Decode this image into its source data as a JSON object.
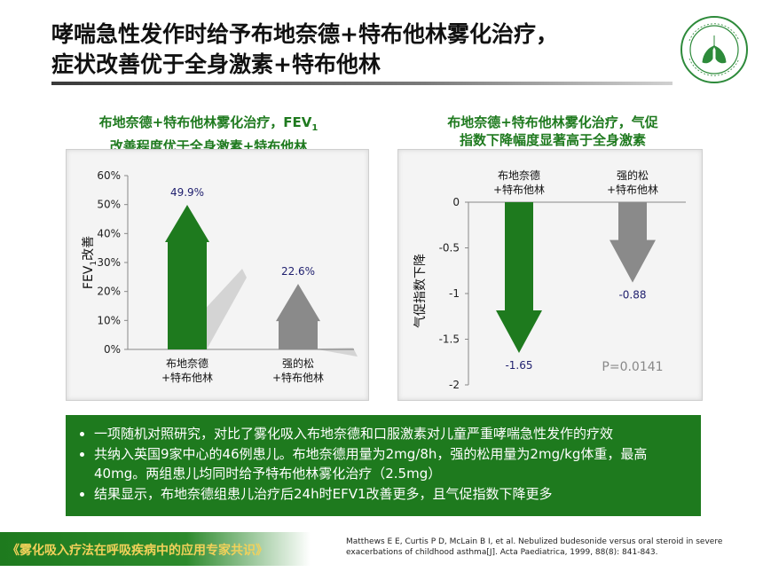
{
  "header": {
    "title_line1": "哮喘急性发作时给予布地奈德+特布他林雾化治疗，",
    "title_line2": "症状改善优于全身激素+特布他林"
  },
  "colors": {
    "green": "#1e7a1e",
    "gray": "#8a8a8a",
    "footer_text": "#f1d15a"
  },
  "chart_data": [
    {
      "type": "bar",
      "title_line1": "布地奈德+特布他林雾化治疗，FEV",
      "title_sub": "1",
      "title_line2": "改善程度优于全身激素+特布他林",
      "ylabel_main": "FEV",
      "ylabel_sub": "1",
      "ylabel_tail": "改善",
      "ylim": [
        0,
        60
      ],
      "yticks": [
        0,
        10,
        20,
        30,
        40,
        50,
        60
      ],
      "ytick_labels": [
        "0%",
        "10%",
        "20%",
        "30%",
        "40%",
        "50%",
        "60%"
      ],
      "categories": [
        [
          "布地奈德",
          "+特布他林"
        ],
        [
          "强的松",
          "+特布他林"
        ]
      ],
      "values": [
        49.9,
        22.6
      ],
      "value_labels": [
        "49.9%",
        "22.6%"
      ]
    },
    {
      "type": "bar",
      "title_line1": "布地奈德+特布他林雾化治疗，气促",
      "title_line2": "指数下降幅度显著高于全身激素",
      "ylabel": "气促指数下降",
      "ylim": [
        -2,
        0
      ],
      "yticks": [
        0,
        -0.5,
        -1,
        -1.5,
        -2
      ],
      "ytick_labels": [
        "0",
        "-0.5",
        "-1",
        "-1.5",
        "-2"
      ],
      "categories": [
        [
          "布地奈德",
          "+特布他林"
        ],
        [
          "强的松",
          "+特布他林"
        ]
      ],
      "values": [
        -1.65,
        -0.88
      ],
      "value_labels": [
        "-1.65",
        "-0.88"
      ],
      "annotation": "P=0.0141"
    }
  ],
  "bullets": [
    "一项随机对照研究，对比了雾化吸入布地奈德和口服激素对儿童严重哮喘急性发作的疗效",
    "共纳入英国9家中心的46例患儿。布地奈德用量为2mg/8h，强的松用量为2mg/kg体重，最高40mg。两组患儿均同时给予特布他林雾化治疗（2.5mg）",
    "结果显示，布地奈德组患儿治疗后24h时EFV1改善更多，且气促指数下降更多"
  ],
  "footer": {
    "text": "《雾化吸入疗法在呼吸疾病中的应用专家共识》",
    "reference": "Matthews E E, Curtis P D, McLain B I, et al. Nebulized budesonide versus oral steroid in severe exacerbations of childhood asthma[J]. Acta Paediatrica, 1999, 88(8): 841-843."
  }
}
